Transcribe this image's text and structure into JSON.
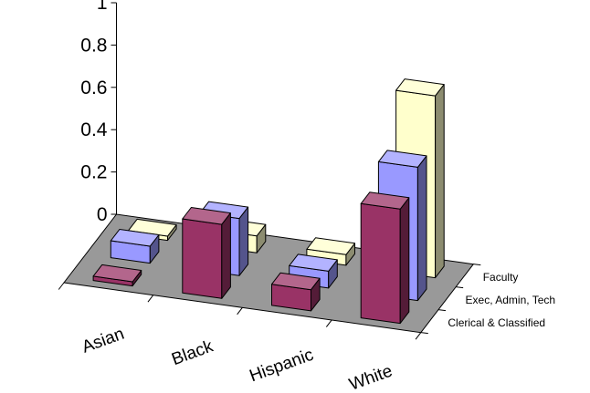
{
  "chart_data": {
    "type": "bar",
    "subtype": "3d-column",
    "categories": [
      "Asian",
      "Black",
      "Hispanic",
      "White"
    ],
    "series": [
      {
        "name": "Clerical & Classified",
        "values": [
          0.02,
          0.35,
          0.1,
          0.54
        ],
        "color": "#993366"
      },
      {
        "name": "Exec, Admin, Tech",
        "values": [
          0.08,
          0.27,
          0.08,
          0.63
        ],
        "color": "#9999ff"
      },
      {
        "name": "Faculty",
        "values": [
          0.02,
          0.08,
          0.05,
          0.86
        ],
        "color": "#ffffcc"
      }
    ],
    "yticks": [
      "0",
      "0.2",
      "0.4",
      "0.6",
      "0.8",
      "1"
    ],
    "ylim": [
      0,
      1
    ],
    "floor_color": "#999999",
    "gridlines": false,
    "legend": "series labels on depth axis (right)",
    "title": "",
    "xlabel": "",
    "ylabel": ""
  }
}
